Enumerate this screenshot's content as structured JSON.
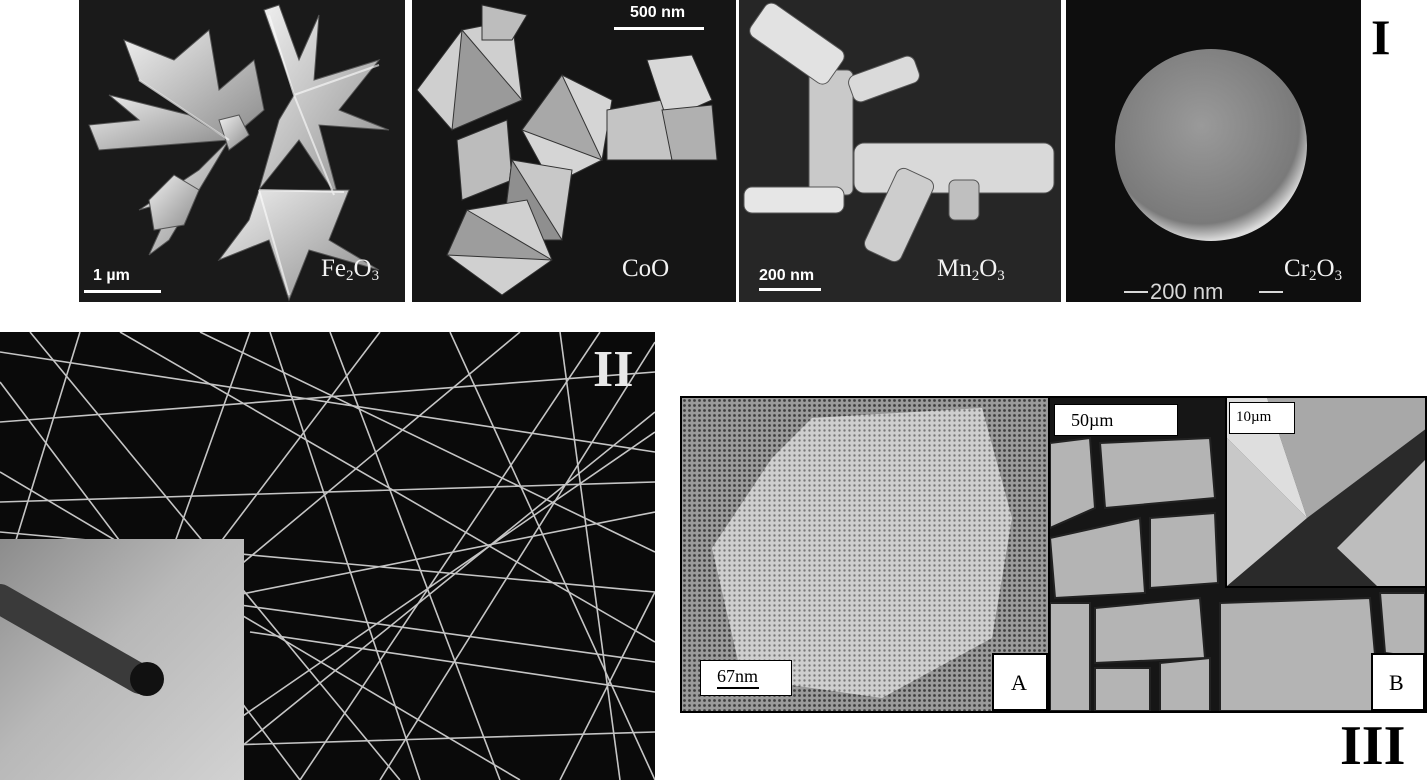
{
  "figure": {
    "panel_I": {
      "roman": "I",
      "images": [
        {
          "compound": "Fe",
          "sub": "2",
          "tail": "O",
          "sub2": "3",
          "scale": "1 µm"
        },
        {
          "compound": "CoO",
          "scale": "500 nm"
        },
        {
          "compound": "Mn",
          "sub": "2",
          "tail": "O",
          "sub2": "3",
          "scale": "200 nm"
        },
        {
          "compound": "Cr",
          "sub": "2",
          "tail": "O",
          "sub2": "3",
          "scale": "200 nm"
        }
      ]
    },
    "panel_II": {
      "roman": "II"
    },
    "panel_III": {
      "roman": "III",
      "scale_A": "67nm",
      "label_A": "A",
      "scale_B1": "50µm",
      "scale_B2": "10µm",
      "label_B": "B"
    }
  },
  "colors": {
    "background": "#ffffff",
    "sem_dark": "#111111",
    "sem_light": "#dcdcdc"
  }
}
